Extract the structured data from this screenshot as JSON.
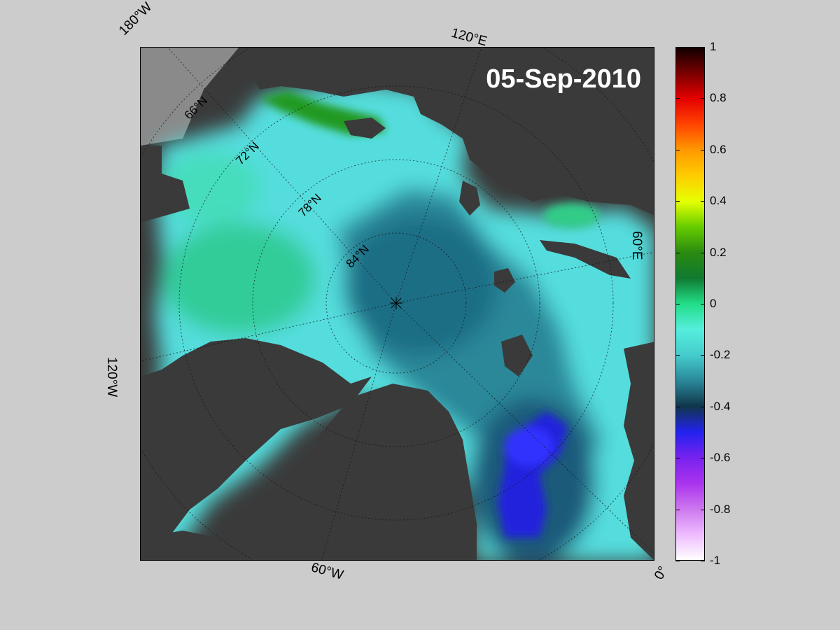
{
  "map": {
    "date": "05-Sep-2010",
    "projection": "polar-stereographic",
    "edge_labels": {
      "lon_180w": "180°W",
      "lon_120e": "120°E",
      "lon_60e": "60°E",
      "lon_120w": "120°W",
      "lon_60w": "60°W",
      "lon_0": "0°"
    },
    "lat_labels": {
      "lat_66": "66°N",
      "lat_72": "72°N",
      "lat_78": "78°N",
      "lat_84": "84°N"
    },
    "colors": {
      "land": "#3a3a3a",
      "ice_shelf": "#8a8a8a",
      "figure_bg": "#cccccc"
    }
  },
  "colorbar": {
    "min": -1,
    "max": 1,
    "ticks": [
      "1",
      "0.8",
      "0.6",
      "0.4",
      "0.2",
      "0",
      "-0.2",
      "-0.4",
      "-0.6",
      "-0.8",
      "-1"
    ],
    "tick_values": [
      1,
      0.8,
      0.6,
      0.4,
      0.2,
      0,
      -0.2,
      -0.4,
      -0.6,
      -0.8,
      -1
    ],
    "stops": [
      {
        "value": 1,
        "color": "#100000"
      },
      {
        "value": 0.9,
        "color": "#7a0000"
      },
      {
        "value": 0.8,
        "color": "#e60000"
      },
      {
        "value": 0.7,
        "color": "#ff4400"
      },
      {
        "value": 0.6,
        "color": "#ff9900"
      },
      {
        "value": 0.5,
        "color": "#ffcc00"
      },
      {
        "value": 0.4,
        "color": "#e6ff00"
      },
      {
        "value": 0.3,
        "color": "#66cc00"
      },
      {
        "value": 0.2,
        "color": "#2a8a10"
      },
      {
        "value": 0.1,
        "color": "#107a30"
      },
      {
        "value": 0,
        "color": "#22dd88"
      },
      {
        "value": -0.1,
        "color": "#55eedd"
      },
      {
        "value": -0.2,
        "color": "#44cccc"
      },
      {
        "value": -0.3,
        "color": "#2a8899"
      },
      {
        "value": -0.4,
        "color": "#10364a"
      },
      {
        "value": -0.5,
        "color": "#2222ee"
      },
      {
        "value": -0.6,
        "color": "#7722ee"
      },
      {
        "value": -0.7,
        "color": "#aa33ee"
      },
      {
        "value": -0.8,
        "color": "#cc77ee"
      },
      {
        "value": -0.9,
        "color": "#eebbff"
      },
      {
        "value": -1,
        "color": "#ffffff"
      }
    ]
  }
}
